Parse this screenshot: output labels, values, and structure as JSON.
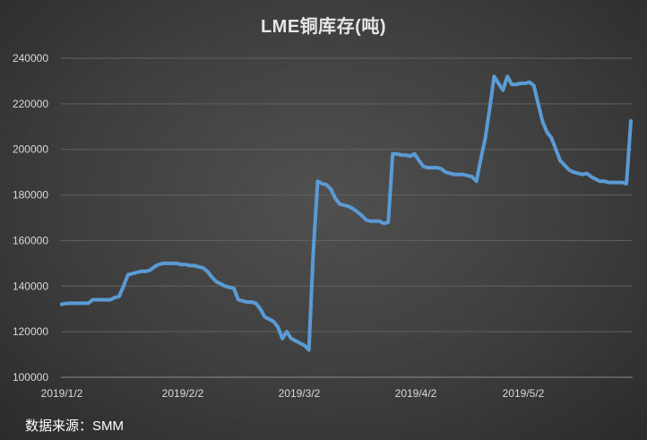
{
  "chart_data": {
    "type": "line",
    "title": "LME铜库存(吨)",
    "xlabel": "",
    "ylabel": "",
    "x_ticks": [
      "2019/1/2",
      "2019/2/2",
      "2019/3/2",
      "2019/4/2",
      "2019/5/2"
    ],
    "ylim": [
      100000,
      240000
    ],
    "y_ticks": [
      100000,
      120000,
      140000,
      160000,
      180000,
      200000,
      220000,
      240000
    ],
    "y_tick_labels": [
      "100000",
      "120000",
      "140000",
      "160000",
      "180000",
      "200000",
      "220000",
      "240000"
    ],
    "grid": "horizontal",
    "line_color": "#5b9bd5",
    "series": [
      {
        "values": [
          132000,
          132400,
          132500,
          132500,
          132500,
          132500,
          132500,
          134000,
          134000,
          134000,
          134000,
          134000,
          135000,
          135500,
          140000,
          145000,
          145500,
          146000,
          146500,
          146500,
          147000,
          148500,
          149500,
          150000,
          150000,
          150000,
          150000,
          149500,
          149500,
          149000,
          149000,
          148500,
          148000,
          146500,
          144000,
          142000,
          141000,
          140000,
          139500,
          139000,
          134000,
          133500,
          133000,
          133000,
          132500,
          130000,
          126500,
          125500,
          124500,
          122000,
          117000,
          120000,
          117000,
          116000,
          115000,
          114000,
          112000,
          155000,
          186000,
          185000,
          184500,
          182500,
          178500,
          176000,
          175500,
          175000,
          174000,
          172500,
          171000,
          169000,
          168500,
          168500,
          168500,
          167500,
          168000,
          198000,
          198000,
          197500,
          197500,
          197000,
          198000,
          195000,
          192500,
          192000,
          192000,
          192000,
          191500,
          190000,
          189500,
          189000,
          189000,
          189000,
          188500,
          188000,
          186000,
          196000,
          205000,
          218000,
          232000,
          229000,
          226000,
          232000,
          228500,
          228500,
          229000,
          229000,
          229500,
          228000,
          220000,
          212000,
          207500,
          205000,
          200000,
          195000,
          193000,
          191000,
          190000,
          189500,
          189000,
          189500,
          188000,
          187000,
          186000,
          186000,
          185500,
          185500,
          185500,
          185500,
          185000,
          212500
        ]
      }
    ]
  },
  "source_note": "数据来源：SMM"
}
